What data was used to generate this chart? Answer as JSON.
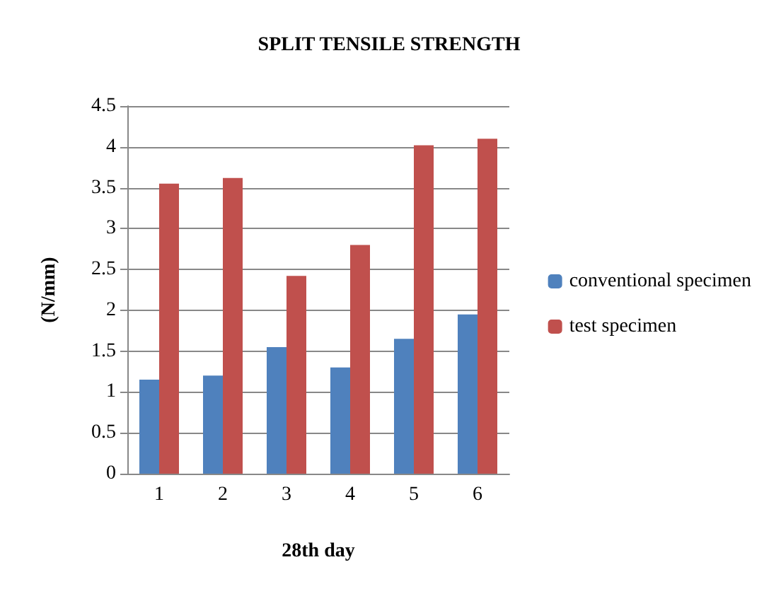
{
  "chart_data": {
    "type": "bar",
    "title": "SPLIT TENSILE STRENGTH",
    "xlabel": "28th day",
    "ylabel": "(N/mm)",
    "categories": [
      "1",
      "2",
      "3",
      "4",
      "5",
      "6"
    ],
    "series": [
      {
        "name": "conventional specimen",
        "color": "#4f81bd",
        "values": [
          1.15,
          1.2,
          1.55,
          1.3,
          1.65,
          1.95
        ]
      },
      {
        "name": "test specimen",
        "color": "#c0504d",
        "values": [
          3.55,
          3.62,
          2.42,
          2.8,
          4.02,
          4.1
        ]
      }
    ],
    "ylim": [
      0,
      4.5
    ],
    "yticks": [
      0,
      0.5,
      1,
      1.5,
      2,
      2.5,
      3,
      3.5,
      4,
      4.5
    ],
    "grid": "y",
    "legend": "right"
  }
}
